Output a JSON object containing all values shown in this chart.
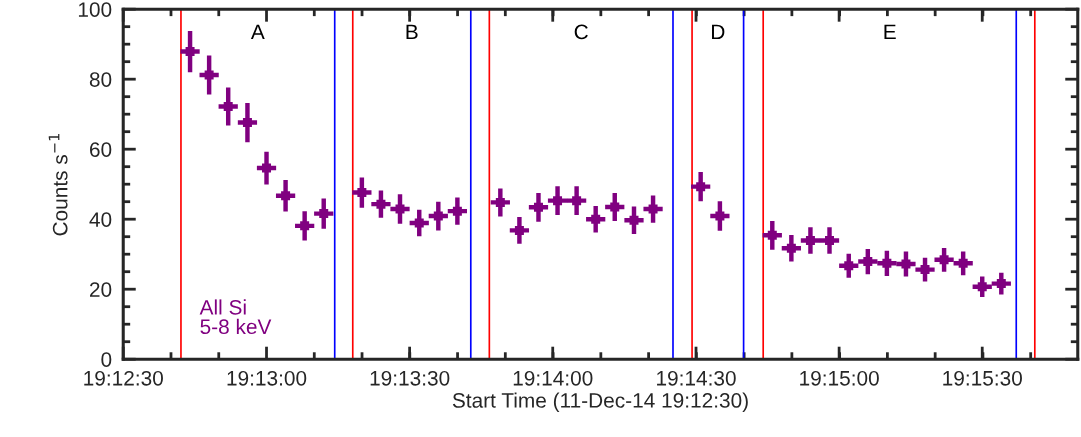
{
  "chart_data": {
    "type": "scatter",
    "marker": "square",
    "xlabel": "Start Time (11-Dec-14 19:12:30)",
    "ylabel": "Counts s$^{−1}$",
    "x": [
      19.21222,
      19.21333,
      19.21444,
      19.21556,
      19.21667,
      19.21778,
      19.21889,
      19.22,
      19.22222,
      19.22333,
      19.22444,
      19.22556,
      19.22667,
      19.22778,
      19.23028,
      19.23139,
      19.2325,
      19.23361,
      19.23472,
      19.23583,
      19.23694,
      19.23806,
      19.23917,
      19.24194,
      19.24306,
      19.24611,
      19.24722,
      19.24833,
      19.24944,
      19.25056,
      19.25167,
      19.25278,
      19.25389,
      19.255,
      19.25611,
      19.25722,
      19.25833,
      19.25944
    ],
    "series": [
      {
        "name": "All Si\n5-8 keV",
        "color": "#800080",
        "values": [
          87.9,
          81.2,
          72.2,
          67.6,
          54.6,
          46.7,
          38.1,
          41.6,
          47.6,
          44.3,
          42.9,
          38.9,
          40.9,
          42.3,
          44.8,
          36.8,
          43.4,
          45.3,
          45.3,
          40.0,
          43.5,
          39.7,
          42.9,
          49.3,
          40.9,
          35.4,
          31.7,
          33.9,
          33.9,
          26.7,
          27.9,
          27.4,
          27.2,
          25.6,
          28.4,
          27.4,
          20.7,
          21.6
        ],
        "errors": [
          5.9,
          5.6,
          5.4,
          5.6,
          4.7,
          4.5,
          4.2,
          4.3,
          4.3,
          3.9,
          4.2,
          3.8,
          4.1,
          3.9,
          4.0,
          3.8,
          4.1,
          4.1,
          4.1,
          3.8,
          4.0,
          3.9,
          3.9,
          4.2,
          4.2,
          4.1,
          3.8,
          3.8,
          3.8,
          3.4,
          3.6,
          3.6,
          3.6,
          3.4,
          3.4,
          3.4,
          2.9,
          3.1
        ],
        "xerrors": [
          0.00056,
          0.00056,
          0.00056,
          0.00056,
          0.00056,
          0.00056,
          0.00056,
          0.00056,
          0.00056,
          0.00056,
          0.00056,
          0.00056,
          0.00056,
          0.00056,
          0.00056,
          0.00056,
          0.00056,
          0.00056,
          0.00056,
          0.00056,
          0.00056,
          0.00056,
          0.00056,
          0.00056,
          0.00056,
          0.00056,
          0.00056,
          0.00056,
          0.00056,
          0.00056,
          0.00056,
          0.00056,
          0.00056,
          0.00056,
          0.00056,
          0.00056,
          0.00056,
          0.00056
        ]
      }
    ],
    "xlim": [
      19.20833,
      19.26389
    ],
    "ylim": [
      0,
      100
    ],
    "xticks": [
      {
        "value": 19.20833,
        "label": "19:12:30"
      },
      {
        "value": 19.21667,
        "label": "19:13:00"
      },
      {
        "value": 19.225,
        "label": "19:13:30"
      },
      {
        "value": 19.23333,
        "label": "19:14:00"
      },
      {
        "value": 19.24167,
        "label": "19:14:30"
      },
      {
        "value": 19.25,
        "label": "19:15:00"
      },
      {
        "value": 19.25833,
        "label": "19:15:30"
      }
    ],
    "yticks": [
      0,
      20,
      40,
      60,
      80,
      100
    ],
    "ref_lines": [
      {
        "axis": "x",
        "value": 19.21169,
        "color": "#ff0000"
      },
      {
        "axis": "x",
        "value": 19.22064,
        "color": "#0000ff"
      },
      {
        "axis": "x",
        "value": 19.22169,
        "color": "#ff0000"
      },
      {
        "axis": "x",
        "value": 19.22856,
        "color": "#0000ff"
      },
      {
        "axis": "x",
        "value": 19.22964,
        "color": "#ff0000"
      },
      {
        "axis": "x",
        "value": 19.24033,
        "color": "#0000ff"
      },
      {
        "axis": "x",
        "value": 19.24144,
        "color": "#ff0000"
      },
      {
        "axis": "x",
        "value": 19.24444,
        "color": "#0000ff"
      },
      {
        "axis": "x",
        "value": 19.24558,
        "color": "#ff0000"
      },
      {
        "axis": "x",
        "value": 19.26031,
        "color": "#0000ff"
      },
      {
        "axis": "x",
        "value": 19.26139,
        "color": "#ff0000"
      }
    ],
    "annotations": [
      "A",
      "B",
      "C",
      "D",
      "E"
    ]
  }
}
